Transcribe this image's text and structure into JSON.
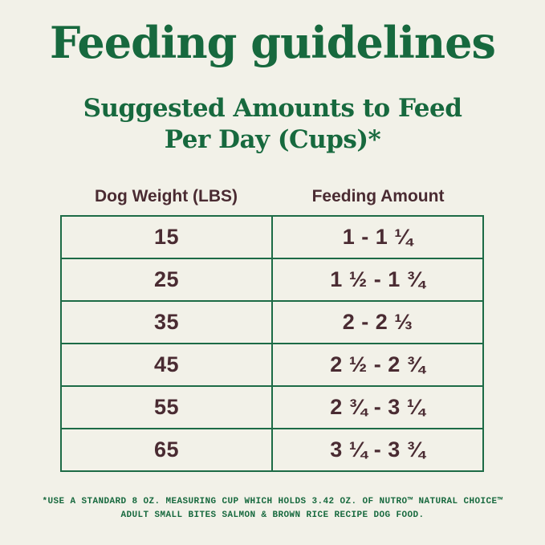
{
  "page": {
    "title": "Feeding guidelines",
    "subtitle_line1": "Suggested Amounts to Feed",
    "subtitle_line2": "Per Day (Cups)*"
  },
  "table": {
    "columns": [
      "Dog Weight (LBS)",
      "Feeding Amount"
    ],
    "rows": [
      {
        "weight": "15",
        "amount": "1 - 1 ¼"
      },
      {
        "weight": "25",
        "amount": "1 ½ - 1 ¾"
      },
      {
        "weight": "35",
        "amount": "2 - 2 ⅓"
      },
      {
        "weight": "45",
        "amount": "2 ½ - 2 ¾"
      },
      {
        "weight": "55",
        "amount": "2 ¾ - 3 ¼"
      },
      {
        "weight": "65",
        "amount": "3 ¼ - 3 ¾"
      }
    ]
  },
  "footnote": {
    "line1": "*USE A STANDARD 8 OZ. MEASURING CUP WHICH HOLDS 3.42 OZ. OF NUTRO™ NATURAL CHOICE™",
    "line2": "ADULT SMALL BITES SALMON & BROWN RICE RECIPE DOG FOOD."
  },
  "colors": {
    "background": "#F2F1E8",
    "heading_green": "#17693E",
    "text_maroon": "#4A2B32",
    "table_border_green": "#1D6B46"
  }
}
